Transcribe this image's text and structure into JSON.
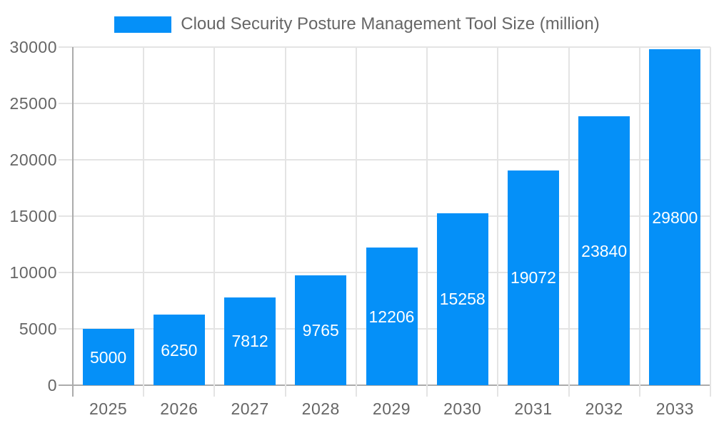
{
  "legend": {
    "label": "Cloud Security Posture Management Tool Size (million)"
  },
  "chart_data": {
    "type": "bar",
    "title": "Cloud Security Posture Management Tool Size (million)",
    "series_name": "Cloud Security Posture Management Tool Size (million)",
    "categories": [
      "2025",
      "2026",
      "2027",
      "2028",
      "2029",
      "2030",
      "2031",
      "2032",
      "2033"
    ],
    "values": [
      5000,
      6250,
      7812,
      9765,
      12206,
      15258,
      19072,
      23840,
      29800
    ],
    "xlabel": "",
    "ylabel": "",
    "ylim": [
      0,
      30000
    ],
    "yticks": [
      0,
      5000,
      10000,
      15000,
      20000,
      25000,
      30000
    ],
    "grid": true,
    "legend_position": "top",
    "data_labels_visible": true,
    "colors": {
      "bar": "#0590f8",
      "grid_line": "#e4e4e4",
      "axis_line": "#ababab",
      "tick_text": "#666666",
      "data_label": "#ffffff",
      "background": "#ffffff"
    }
  }
}
